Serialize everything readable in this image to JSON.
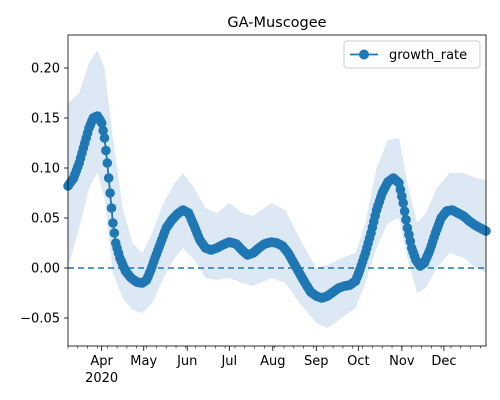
{
  "chart_data": {
    "type": "line",
    "title": "GA-Muscogee",
    "xlabel": "",
    "ylabel": "",
    "year_label": "2020",
    "x_start": "2020-03-08",
    "x_end": "2020-12-31",
    "ylim": [
      -0.078,
      0.233
    ],
    "yticks": [
      -0.05,
      0.0,
      0.05,
      0.1,
      0.15,
      0.2
    ],
    "ytick_labels": [
      "−0.05",
      "0.00",
      "0.05",
      "0.10",
      "0.15",
      "0.20"
    ],
    "xticks": [
      {
        "date": "2020-04-01",
        "label": "Apr"
      },
      {
        "date": "2020-05-01",
        "label": "May"
      },
      {
        "date": "2020-06-01",
        "label": "Jun"
      },
      {
        "date": "2020-07-01",
        "label": "Jul"
      },
      {
        "date": "2020-08-01",
        "label": "Aug"
      },
      {
        "date": "2020-09-01",
        "label": "Sep"
      },
      {
        "date": "2020-10-01",
        "label": "Oct"
      },
      {
        "date": "2020-11-01",
        "label": "Nov"
      },
      {
        "date": "2020-12-01",
        "label": "Dec"
      }
    ],
    "reference_line": 0.0,
    "legend": {
      "position": "top-right",
      "entries": [
        "growth_rate"
      ]
    },
    "grid": false,
    "colors": {
      "line": "#1f77b4",
      "band": "#dce9f5"
    },
    "series": [
      {
        "name": "growth_rate",
        "points": [
          [
            "2020-03-08",
            0.082
          ],
          [
            "2020-03-12",
            0.09
          ],
          [
            "2020-03-16",
            0.105
          ],
          [
            "2020-03-20",
            0.125
          ],
          [
            "2020-03-23",
            0.14
          ],
          [
            "2020-03-26",
            0.15
          ],
          [
            "2020-03-29",
            0.152
          ],
          [
            "2020-04-01",
            0.145
          ],
          [
            "2020-04-03",
            0.13
          ],
          [
            "2020-04-05",
            0.105
          ],
          [
            "2020-04-07",
            0.075
          ],
          [
            "2020-04-09",
            0.045
          ],
          [
            "2020-04-11",
            0.025
          ],
          [
            "2020-04-14",
            0.01
          ],
          [
            "2020-04-18",
            -0.003
          ],
          [
            "2020-04-22",
            -0.01
          ],
          [
            "2020-04-26",
            -0.014
          ],
          [
            "2020-04-30",
            -0.015
          ],
          [
            "2020-05-03",
            -0.012
          ],
          [
            "2020-05-06",
            -0.002
          ],
          [
            "2020-05-09",
            0.01
          ],
          [
            "2020-05-13",
            0.025
          ],
          [
            "2020-05-17",
            0.04
          ],
          [
            "2020-05-21",
            0.048
          ],
          [
            "2020-05-25",
            0.054
          ],
          [
            "2020-05-29",
            0.058
          ],
          [
            "2020-06-02",
            0.055
          ],
          [
            "2020-06-06",
            0.042
          ],
          [
            "2020-06-10",
            0.028
          ],
          [
            "2020-06-14",
            0.02
          ],
          [
            "2020-06-18",
            0.018
          ],
          [
            "2020-06-22",
            0.02
          ],
          [
            "2020-06-26",
            0.023
          ],
          [
            "2020-07-01",
            0.026
          ],
          [
            "2020-07-06",
            0.024
          ],
          [
            "2020-07-10",
            0.018
          ],
          [
            "2020-07-14",
            0.013
          ],
          [
            "2020-07-18",
            0.015
          ],
          [
            "2020-07-22",
            0.02
          ],
          [
            "2020-07-26",
            0.024
          ],
          [
            "2020-07-31",
            0.026
          ],
          [
            "2020-08-04",
            0.025
          ],
          [
            "2020-08-08",
            0.022
          ],
          [
            "2020-08-12",
            0.015
          ],
          [
            "2020-08-16",
            0.005
          ],
          [
            "2020-08-20",
            -0.005
          ],
          [
            "2020-08-24",
            -0.015
          ],
          [
            "2020-08-28",
            -0.024
          ],
          [
            "2020-09-01",
            -0.028
          ],
          [
            "2020-09-05",
            -0.03
          ],
          [
            "2020-09-09",
            -0.028
          ],
          [
            "2020-09-13",
            -0.024
          ],
          [
            "2020-09-17",
            -0.02
          ],
          [
            "2020-09-21",
            -0.018
          ],
          [
            "2020-09-25",
            -0.017
          ],
          [
            "2020-09-29",
            -0.013
          ],
          [
            "2020-10-02",
            -0.002
          ],
          [
            "2020-10-06",
            0.015
          ],
          [
            "2020-10-10",
            0.035
          ],
          [
            "2020-10-14",
            0.058
          ],
          [
            "2020-10-18",
            0.075
          ],
          [
            "2020-10-22",
            0.086
          ],
          [
            "2020-10-26",
            0.09
          ],
          [
            "2020-10-30",
            0.085
          ],
          [
            "2020-11-02",
            0.065
          ],
          [
            "2020-11-05",
            0.04
          ],
          [
            "2020-11-08",
            0.02
          ],
          [
            "2020-11-11",
            0.008
          ],
          [
            "2020-11-14",
            0.002
          ],
          [
            "2020-11-17",
            0.005
          ],
          [
            "2020-11-21",
            0.018
          ],
          [
            "2020-11-25",
            0.035
          ],
          [
            "2020-11-29",
            0.05
          ],
          [
            "2020-12-03",
            0.057
          ],
          [
            "2020-12-07",
            0.058
          ],
          [
            "2020-12-11",
            0.055
          ],
          [
            "2020-12-15",
            0.052
          ],
          [
            "2020-12-19",
            0.047
          ],
          [
            "2020-12-23",
            0.043
          ],
          [
            "2020-12-27",
            0.04
          ],
          [
            "2020-12-31",
            0.037
          ]
        ]
      }
    ],
    "band_points": [
      [
        "2020-03-08",
        0.0,
        0.165
      ],
      [
        "2020-03-16",
        0.04,
        0.175
      ],
      [
        "2020-03-23",
        0.08,
        0.205
      ],
      [
        "2020-03-29",
        0.095,
        0.218
      ],
      [
        "2020-04-03",
        0.07,
        0.2
      ],
      [
        "2020-04-09",
        -0.005,
        0.13
      ],
      [
        "2020-04-16",
        -0.03,
        0.06
      ],
      [
        "2020-04-23",
        -0.042,
        0.025
      ],
      [
        "2020-04-30",
        -0.045,
        0.015
      ],
      [
        "2020-05-07",
        -0.035,
        0.035
      ],
      [
        "2020-05-15",
        -0.01,
        0.065
      ],
      [
        "2020-05-23",
        0.01,
        0.085
      ],
      [
        "2020-05-29",
        0.02,
        0.095
      ],
      [
        "2020-06-06",
        0.008,
        0.08
      ],
      [
        "2020-06-14",
        -0.01,
        0.06
      ],
      [
        "2020-06-22",
        -0.012,
        0.055
      ],
      [
        "2020-07-01",
        -0.01,
        0.065
      ],
      [
        "2020-07-10",
        -0.015,
        0.055
      ],
      [
        "2020-07-18",
        -0.018,
        0.052
      ],
      [
        "2020-07-31",
        -0.01,
        0.065
      ],
      [
        "2020-08-10",
        -0.015,
        0.058
      ],
      [
        "2020-08-20",
        -0.035,
        0.03
      ],
      [
        "2020-09-01",
        -0.055,
        0.0
      ],
      [
        "2020-09-09",
        -0.06,
        0.003
      ],
      [
        "2020-09-19",
        -0.05,
        0.01
      ],
      [
        "2020-09-29",
        -0.04,
        0.015
      ],
      [
        "2020-10-06",
        -0.015,
        0.045
      ],
      [
        "2020-10-14",
        0.02,
        0.1
      ],
      [
        "2020-10-22",
        0.045,
        0.128
      ],
      [
        "2020-10-30",
        0.05,
        0.13
      ],
      [
        "2020-11-05",
        0.01,
        0.085
      ],
      [
        "2020-11-12",
        -0.025,
        0.045
      ],
      [
        "2020-11-18",
        -0.02,
        0.055
      ],
      [
        "2020-11-26",
        0.0,
        0.08
      ],
      [
        "2020-12-05",
        0.015,
        0.095
      ],
      [
        "2020-12-15",
        0.01,
        0.095
      ],
      [
        "2020-12-24",
        0.0,
        0.09
      ],
      [
        "2020-12-31",
        -0.005,
        0.088
      ]
    ]
  }
}
